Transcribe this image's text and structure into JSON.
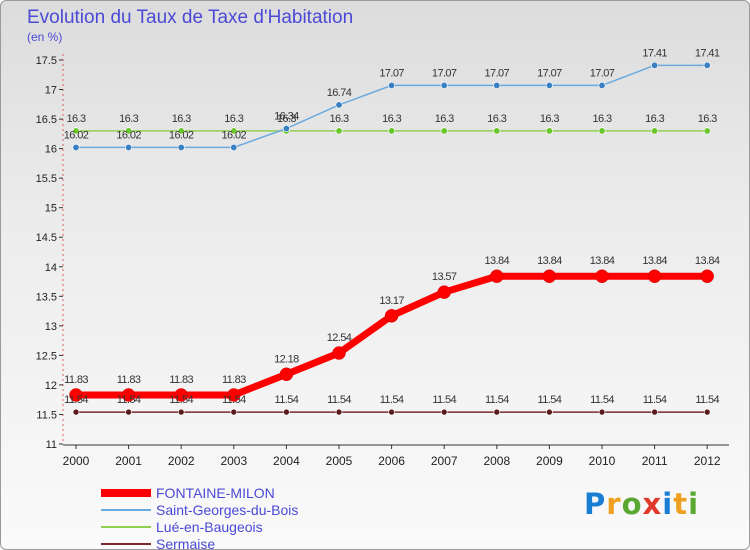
{
  "chart_data": {
    "type": "line",
    "title": "Evolution du Taux de Taxe d'Habitation",
    "ylabel": "(en %)",
    "xlabel": "",
    "ylim": [
      11,
      17.5
    ],
    "yticks": [
      "11",
      "11.5",
      "12",
      "12.5",
      "13",
      "13.5",
      "14",
      "14.5",
      "15",
      "15.5",
      "16",
      "16.5",
      "17",
      "17.5"
    ],
    "yticks_values": [
      11,
      11.5,
      12,
      12.5,
      13,
      13.5,
      14,
      14.5,
      15,
      15.5,
      16,
      16.5,
      17,
      17.5
    ],
    "categories": [
      "2000",
      "2001",
      "2002",
      "2003",
      "2004",
      "2005",
      "2006",
      "2007",
      "2008",
      "2009",
      "2010",
      "2011",
      "2012"
    ],
    "series": [
      {
        "name": "FONTAINE-MILON",
        "color": "#ff0000",
        "values": [
          11.83,
          11.83,
          11.83,
          11.83,
          12.18,
          12.54,
          13.17,
          13.57,
          13.84,
          13.84,
          13.84,
          13.84,
          13.84
        ],
        "labels": [
          "11.83",
          "11.83",
          "11.83",
          "11.83",
          "12.18",
          "12.54",
          "13.17",
          "13.57",
          "13.84",
          "13.84",
          "13.84",
          "13.84",
          "13.84"
        ]
      },
      {
        "name": "Saint-Georges-du-Bois",
        "color": "#6aaae0",
        "values": [
          16.02,
          16.02,
          16.02,
          16.02,
          16.34,
          16.74,
          17.07,
          17.07,
          17.07,
          17.07,
          17.07,
          17.41,
          17.41
        ],
        "labels": [
          "16.02",
          "16.02",
          "16.02",
          "16.02",
          "16.34",
          "16.74",
          "17.07",
          "17.07",
          "17.07",
          "17.07",
          "17.07",
          "17.41",
          "17.41"
        ]
      },
      {
        "name": "Lué-en-Baugeois",
        "color": "#8fd14f",
        "values": [
          16.3,
          16.3,
          16.3,
          16.3,
          16.3,
          16.3,
          16.3,
          16.3,
          16.3,
          16.3,
          16.3,
          16.3,
          16.3
        ],
        "labels": [
          "16.3",
          "16.3",
          "16.3",
          "16.3",
          "16.3",
          "16.3",
          "16.3",
          "16.3",
          "16.3",
          "16.3",
          "16.3",
          "16.3",
          "16.3"
        ]
      },
      {
        "name": "Sermaise",
        "color": "#7a2a2a",
        "values": [
          11.54,
          11.54,
          11.54,
          11.54,
          11.54,
          11.54,
          11.54,
          11.54,
          11.54,
          11.54,
          11.54,
          11.54,
          11.54
        ],
        "labels": [
          "11.54",
          "11.54",
          "11.54",
          "11.54",
          "11.54",
          "11.54",
          "11.54",
          "11.54",
          "11.54",
          "11.54",
          "11.54",
          "11.54",
          "11.54"
        ]
      }
    ],
    "legend_position": "bottom-left"
  },
  "logo": {
    "text": "Proxiti",
    "letters": [
      "P",
      "r",
      "o",
      "x",
      "i",
      "t",
      "i"
    ],
    "colors": [
      "#1a7fd4",
      "#f0a020",
      "#5aa832",
      "#e03a2a",
      "#1a7fd4",
      "#f0a020",
      "#5aa832"
    ]
  }
}
